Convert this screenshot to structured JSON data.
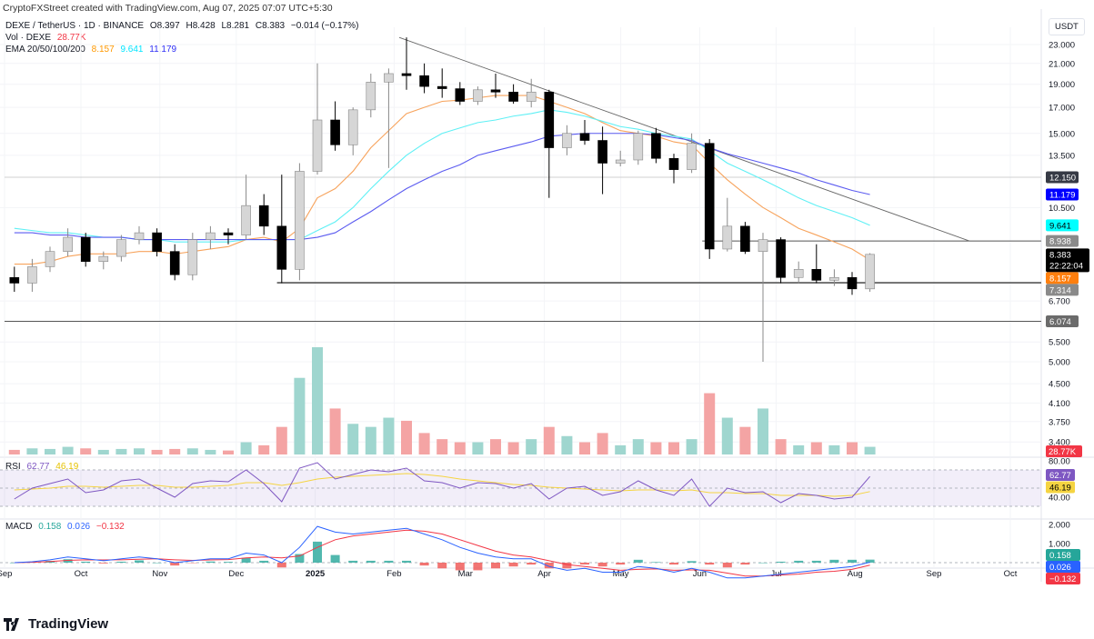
{
  "credit": "CryptoFXStreet created with TradingView.com, Aug 07, 2025 07:07 UTC+5:30",
  "legend": {
    "symbol": "DEXE / TetherUS · 1D · BINANCE",
    "open": "O8.397",
    "high": "H8.428",
    "low": "L8.281",
    "close": "C8.383",
    "change": "−0.014 (−0.17%)",
    "vol_label": "Vol · DEXE",
    "vol_value": "28.77K",
    "ema_label": "EMA 20/50/100/200",
    "ema_values": [
      "8.157",
      "9.641",
      "11.179"
    ],
    "rsi_label": "RSI",
    "rsi_values": [
      "62.77",
      "46.19"
    ],
    "macd_label": "MACD",
    "macd_values": [
      "0.158",
      "0.026",
      "−0.132"
    ]
  },
  "currency": "USDT",
  "footer_brand": "TradingView",
  "colors": {
    "ema_fast": "#f7a35c",
    "ema_mid": "#5ff0f5",
    "ema_slow": "#5b5bf0",
    "up_volume": "#9fd6cf",
    "down_volume": "#f4a4a4",
    "rsi": "#7e57c2",
    "rsi_ma": "#f5d442",
    "macd": "#2962ff",
    "signal": "#f23645",
    "hist_up": "#26a69a",
    "hist_down": "#ef5350"
  },
  "chart_data": [
    {
      "type": "candlestick",
      "scale": "log",
      "x_tick_labels": [
        [
          "2024-09-01",
          "Sep"
        ],
        [
          "2024-10-01",
          "Oct"
        ],
        [
          "2024-11-01",
          "Nov"
        ],
        [
          "2024-12-01",
          "Dec"
        ],
        [
          "2025-01-01",
          "2025"
        ],
        [
          "2025-02-01",
          "Feb"
        ],
        [
          "2025-03-01",
          "Mar"
        ],
        [
          "2025-04-01",
          "Apr"
        ],
        [
          "2025-05-01",
          "May"
        ],
        [
          "2025-06-01",
          "Jun"
        ],
        [
          "2025-07-01",
          "Jul"
        ],
        [
          "2025-08-01",
          "Aug"
        ],
        [
          "2025-09-01",
          "Sep"
        ],
        [
          "2025-10-01",
          "Oct"
        ]
      ],
      "y_ticks": [
        "23.000",
        "21.000",
        "19.000",
        "17.000",
        "15.000",
        "13.500",
        "10.500",
        "6.700",
        "5.500",
        "5.000",
        "4.500",
        "4.100",
        "3.750",
        "3.400"
      ],
      "price_labels": [
        {
          "value": "12.150",
          "bg": "#363a45"
        },
        {
          "value": "11.179",
          "bg": "#0000ff"
        },
        {
          "value": "9.641",
          "bg": "#00ffff",
          "fg": "#000"
        },
        {
          "value": "8.938",
          "bg": "#8a8a8a"
        },
        {
          "value": "8.383",
          "bg": "#000000",
          "sub": "22:22:04"
        },
        {
          "value": "8.157",
          "bg": "#ff7f0e"
        },
        {
          "value": "7.314",
          "bg": "#8a8a8a"
        },
        {
          "value": "6.074",
          "bg": "#6b6b6b"
        }
      ],
      "horizontal_lines": [
        {
          "price": 12.15,
          "from": "2024-09-01",
          "color": "#d0d0d0"
        },
        {
          "price": 8.938,
          "from": "2025-06-02",
          "color": "#555"
        },
        {
          "price": 7.314,
          "from": "2024-12-17",
          "color": "#555"
        },
        {
          "price": 6.074,
          "from": "2024-09-01",
          "color": "#555"
        }
      ],
      "trendline": {
        "from": [
          "2025-02-03",
          23.8
        ],
        "to": [
          "2025-09-15",
          8.938
        ]
      },
      "candles": [
        [
          "2024-09-02",
          7.5,
          7.9,
          7.0,
          7.3,
          150
        ],
        [
          "2024-09-09",
          7.3,
          8.2,
          7.0,
          7.9,
          200
        ],
        [
          "2024-09-16",
          7.9,
          8.7,
          7.7,
          8.5,
          180
        ],
        [
          "2024-09-23",
          8.5,
          9.5,
          8.3,
          9.1,
          250
        ],
        [
          "2024-09-30",
          9.1,
          9.3,
          7.9,
          8.1,
          200
        ],
        [
          "2024-10-07",
          8.1,
          8.5,
          7.8,
          8.3,
          150
        ],
        [
          "2024-10-14",
          8.3,
          9.2,
          8.1,
          9.0,
          180
        ],
        [
          "2024-10-21",
          9.0,
          9.6,
          8.8,
          9.3,
          200
        ],
        [
          "2024-10-28",
          9.3,
          9.5,
          8.3,
          8.5,
          150
        ],
        [
          "2024-11-04",
          8.5,
          8.8,
          7.4,
          7.6,
          180
        ],
        [
          "2024-11-11",
          7.6,
          9.3,
          7.4,
          9.0,
          200
        ],
        [
          "2024-11-18",
          9.0,
          9.6,
          8.6,
          9.3,
          150
        ],
        [
          "2024-11-25",
          9.3,
          9.5,
          8.8,
          9.2,
          130
        ],
        [
          "2024-12-02",
          9.2,
          12.3,
          9.0,
          10.6,
          400
        ],
        [
          "2024-12-09",
          10.6,
          11.2,
          9.2,
          9.6,
          300
        ],
        [
          "2024-12-16",
          9.6,
          12.3,
          7.3,
          7.8,
          900
        ],
        [
          "2024-12-23",
          7.8,
          13.0,
          7.4,
          12.5,
          2500
        ],
        [
          "2024-12-30",
          12.5,
          21.0,
          12.3,
          16.0,
          3500
        ],
        [
          "2025-01-06",
          16.0,
          17.5,
          13.8,
          14.2,
          1500
        ],
        [
          "2025-01-13",
          14.2,
          17.0,
          13.5,
          16.8,
          1000
        ],
        [
          "2025-01-20",
          16.8,
          20.0,
          16.2,
          19.2,
          900
        ],
        [
          "2025-01-27",
          19.2,
          20.5,
          12.7,
          20.0,
          1200
        ],
        [
          "2025-02-03",
          20.0,
          23.8,
          18.5,
          19.8,
          1100
        ],
        [
          "2025-02-10",
          19.8,
          21.0,
          18.2,
          18.8,
          700
        ],
        [
          "2025-02-17",
          18.8,
          20.5,
          17.8,
          18.6,
          500
        ],
        [
          "2025-02-24",
          18.6,
          19.2,
          17.2,
          17.5,
          400
        ],
        [
          "2025-03-03",
          17.5,
          18.8,
          17.2,
          18.5,
          400
        ],
        [
          "2025-03-10",
          18.5,
          20.0,
          17.8,
          18.3,
          500
        ],
        [
          "2025-03-17",
          18.3,
          19.0,
          17.3,
          17.5,
          400
        ],
        [
          "2025-03-24",
          17.5,
          19.5,
          17.0,
          18.3,
          500
        ],
        [
          "2025-03-31",
          18.3,
          18.5,
          11.0,
          14.0,
          900
        ],
        [
          "2025-04-07",
          14.0,
          15.6,
          13.5,
          15.0,
          600
        ],
        [
          "2025-04-14",
          15.0,
          16.0,
          14.2,
          14.5,
          400
        ],
        [
          "2025-04-21",
          14.5,
          15.5,
          11.2,
          13.0,
          700
        ],
        [
          "2025-04-28",
          13.0,
          13.8,
          12.8,
          13.2,
          300
        ],
        [
          "2025-05-05",
          13.2,
          15.2,
          12.9,
          15.0,
          500
        ],
        [
          "2025-05-12",
          15.0,
          15.4,
          13.0,
          13.3,
          400
        ],
        [
          "2025-05-19",
          13.3,
          13.6,
          11.8,
          12.6,
          400
        ],
        [
          "2025-05-26",
          12.6,
          15.0,
          12.4,
          14.3,
          500
        ],
        [
          "2025-06-02",
          14.3,
          14.6,
          8.2,
          8.6,
          2000
        ],
        [
          "2025-06-09",
          8.6,
          11.0,
          8.5,
          9.6,
          1200
        ],
        [
          "2025-06-16",
          9.6,
          9.8,
          8.4,
          8.5,
          900
        ],
        [
          "2025-06-23",
          8.5,
          9.3,
          5.0,
          9.0,
          1500
        ],
        [
          "2025-06-30",
          9.0,
          9.1,
          7.3,
          7.5,
          500
        ],
        [
          "2025-07-07",
          7.5,
          8.1,
          7.3,
          7.8,
          300
        ],
        [
          "2025-07-14",
          7.8,
          8.8,
          7.3,
          7.4,
          400
        ],
        [
          "2025-07-21",
          7.4,
          7.8,
          7.2,
          7.5,
          300
        ],
        [
          "2025-07-28",
          7.5,
          7.7,
          6.9,
          7.1,
          400
        ],
        [
          "2025-08-04",
          7.1,
          8.43,
          7.0,
          8.383,
          250
        ]
      ],
      "ema_fast": [
        8.0,
        8.0,
        8.1,
        8.3,
        8.4,
        8.4,
        8.4,
        8.5,
        8.5,
        8.4,
        8.5,
        8.6,
        8.7,
        9.0,
        9.1,
        8.9,
        9.5,
        11.0,
        11.5,
        12.5,
        14.0,
        15.2,
        16.5,
        17.0,
        17.5,
        17.6,
        17.8,
        18.0,
        18.0,
        18.0,
        17.5,
        17.0,
        16.5,
        15.8,
        15.2,
        15.0,
        14.8,
        14.4,
        14.2,
        13.0,
        12.0,
        11.2,
        10.5,
        10.0,
        9.5,
        9.2,
        8.9,
        8.6,
        8.157
      ],
      "ema_mid": [
        9.5,
        9.4,
        9.3,
        9.3,
        9.2,
        9.1,
        9.1,
        9.0,
        9.0,
        8.9,
        8.9,
        8.9,
        8.9,
        9.0,
        9.0,
        9.0,
        9.0,
        9.4,
        9.8,
        10.5,
        11.5,
        12.5,
        13.5,
        14.3,
        15.0,
        15.4,
        15.8,
        16.0,
        16.3,
        16.5,
        16.8,
        16.6,
        16.3,
        15.9,
        15.5,
        15.3,
        15.0,
        14.8,
        14.6,
        13.8,
        13.0,
        12.5,
        12.0,
        11.5,
        11.0,
        10.6,
        10.3,
        10.0,
        9.641
      ],
      "ema_slow": [
        9.3,
        9.3,
        9.2,
        9.2,
        9.1,
        9.1,
        9.1,
        9.0,
        9.0,
        9.0,
        9.0,
        9.0,
        9.0,
        9.0,
        9.0,
        9.0,
        9.0,
        9.1,
        9.3,
        9.8,
        10.3,
        10.9,
        11.5,
        12.0,
        12.5,
        12.9,
        13.5,
        13.8,
        14.1,
        14.4,
        14.8,
        14.9,
        15.0,
        15.0,
        15.0,
        15.0,
        14.9,
        14.7,
        14.5,
        14.0,
        13.6,
        13.3,
        13.0,
        12.7,
        12.4,
        12.0,
        11.7,
        11.4,
        11.179
      ]
    },
    {
      "type": "line",
      "title": "RSI",
      "y_ticks": [
        "80.00",
        "40.00"
      ],
      "ylim": [
        10,
        80
      ],
      "band": [
        30,
        70
      ],
      "rsi": [
        38,
        50,
        55,
        60,
        45,
        48,
        58,
        60,
        50,
        40,
        55,
        58,
        57,
        70,
        55,
        35,
        72,
        78,
        60,
        65,
        70,
        68,
        72,
        58,
        56,
        50,
        56,
        55,
        50,
        55,
        38,
        50,
        52,
        42,
        46,
        58,
        48,
        42,
        60,
        30,
        50,
        45,
        46,
        34,
        44,
        42,
        38,
        40,
        62.77
      ],
      "rsi_ma": [
        48,
        49,
        50,
        52,
        52,
        51,
        52,
        53,
        53,
        51,
        51,
        52,
        53,
        56,
        56,
        53,
        56,
        60,
        62,
        63,
        64,
        65,
        66,
        65,
        63,
        60,
        58,
        56,
        54,
        53,
        51,
        50,
        49,
        48,
        47,
        48,
        48,
        47,
        48,
        45,
        45,
        44,
        44,
        42,
        42,
        42,
        41,
        42,
        46.19
      ]
    },
    {
      "type": "line",
      "title": "MACD",
      "y_ticks": [
        "2.000",
        "1.000"
      ],
      "macd": [
        0,
        0.05,
        0.15,
        0.3,
        0.2,
        0.1,
        0.2,
        0.3,
        0.2,
        0,
        0.1,
        0.2,
        0.2,
        0.5,
        0.4,
        0,
        0.8,
        1.9,
        1.6,
        1.5,
        1.6,
        1.7,
        1.8,
        1.5,
        1.2,
        0.8,
        0.5,
        0.3,
        0.2,
        0.2,
        -0.2,
        -0.4,
        -0.3,
        -0.5,
        -0.5,
        -0.2,
        -0.3,
        -0.5,
        -0.3,
        -0.5,
        -0.8,
        -0.8,
        -0.7,
        -0.6,
        -0.5,
        -0.4,
        -0.3,
        -0.2,
        0.026
      ],
      "signal": [
        0,
        0.02,
        0.06,
        0.12,
        0.15,
        0.14,
        0.15,
        0.18,
        0.2,
        0.15,
        0.12,
        0.14,
        0.16,
        0.25,
        0.3,
        0.25,
        0.35,
        0.8,
        1.2,
        1.4,
        1.5,
        1.6,
        1.7,
        1.65,
        1.5,
        1.2,
        0.9,
        0.6,
        0.4,
        0.3,
        0.1,
        -0.1,
        -0.2,
        -0.3,
        -0.4,
        -0.35,
        -0.33,
        -0.4,
        -0.38,
        -0.4,
        -0.55,
        -0.7,
        -0.7,
        -0.65,
        -0.6,
        -0.5,
        -0.45,
        -0.35,
        -0.132
      ],
      "label_values": [
        "0.158",
        "0.026",
        "−0.132"
      ]
    }
  ]
}
